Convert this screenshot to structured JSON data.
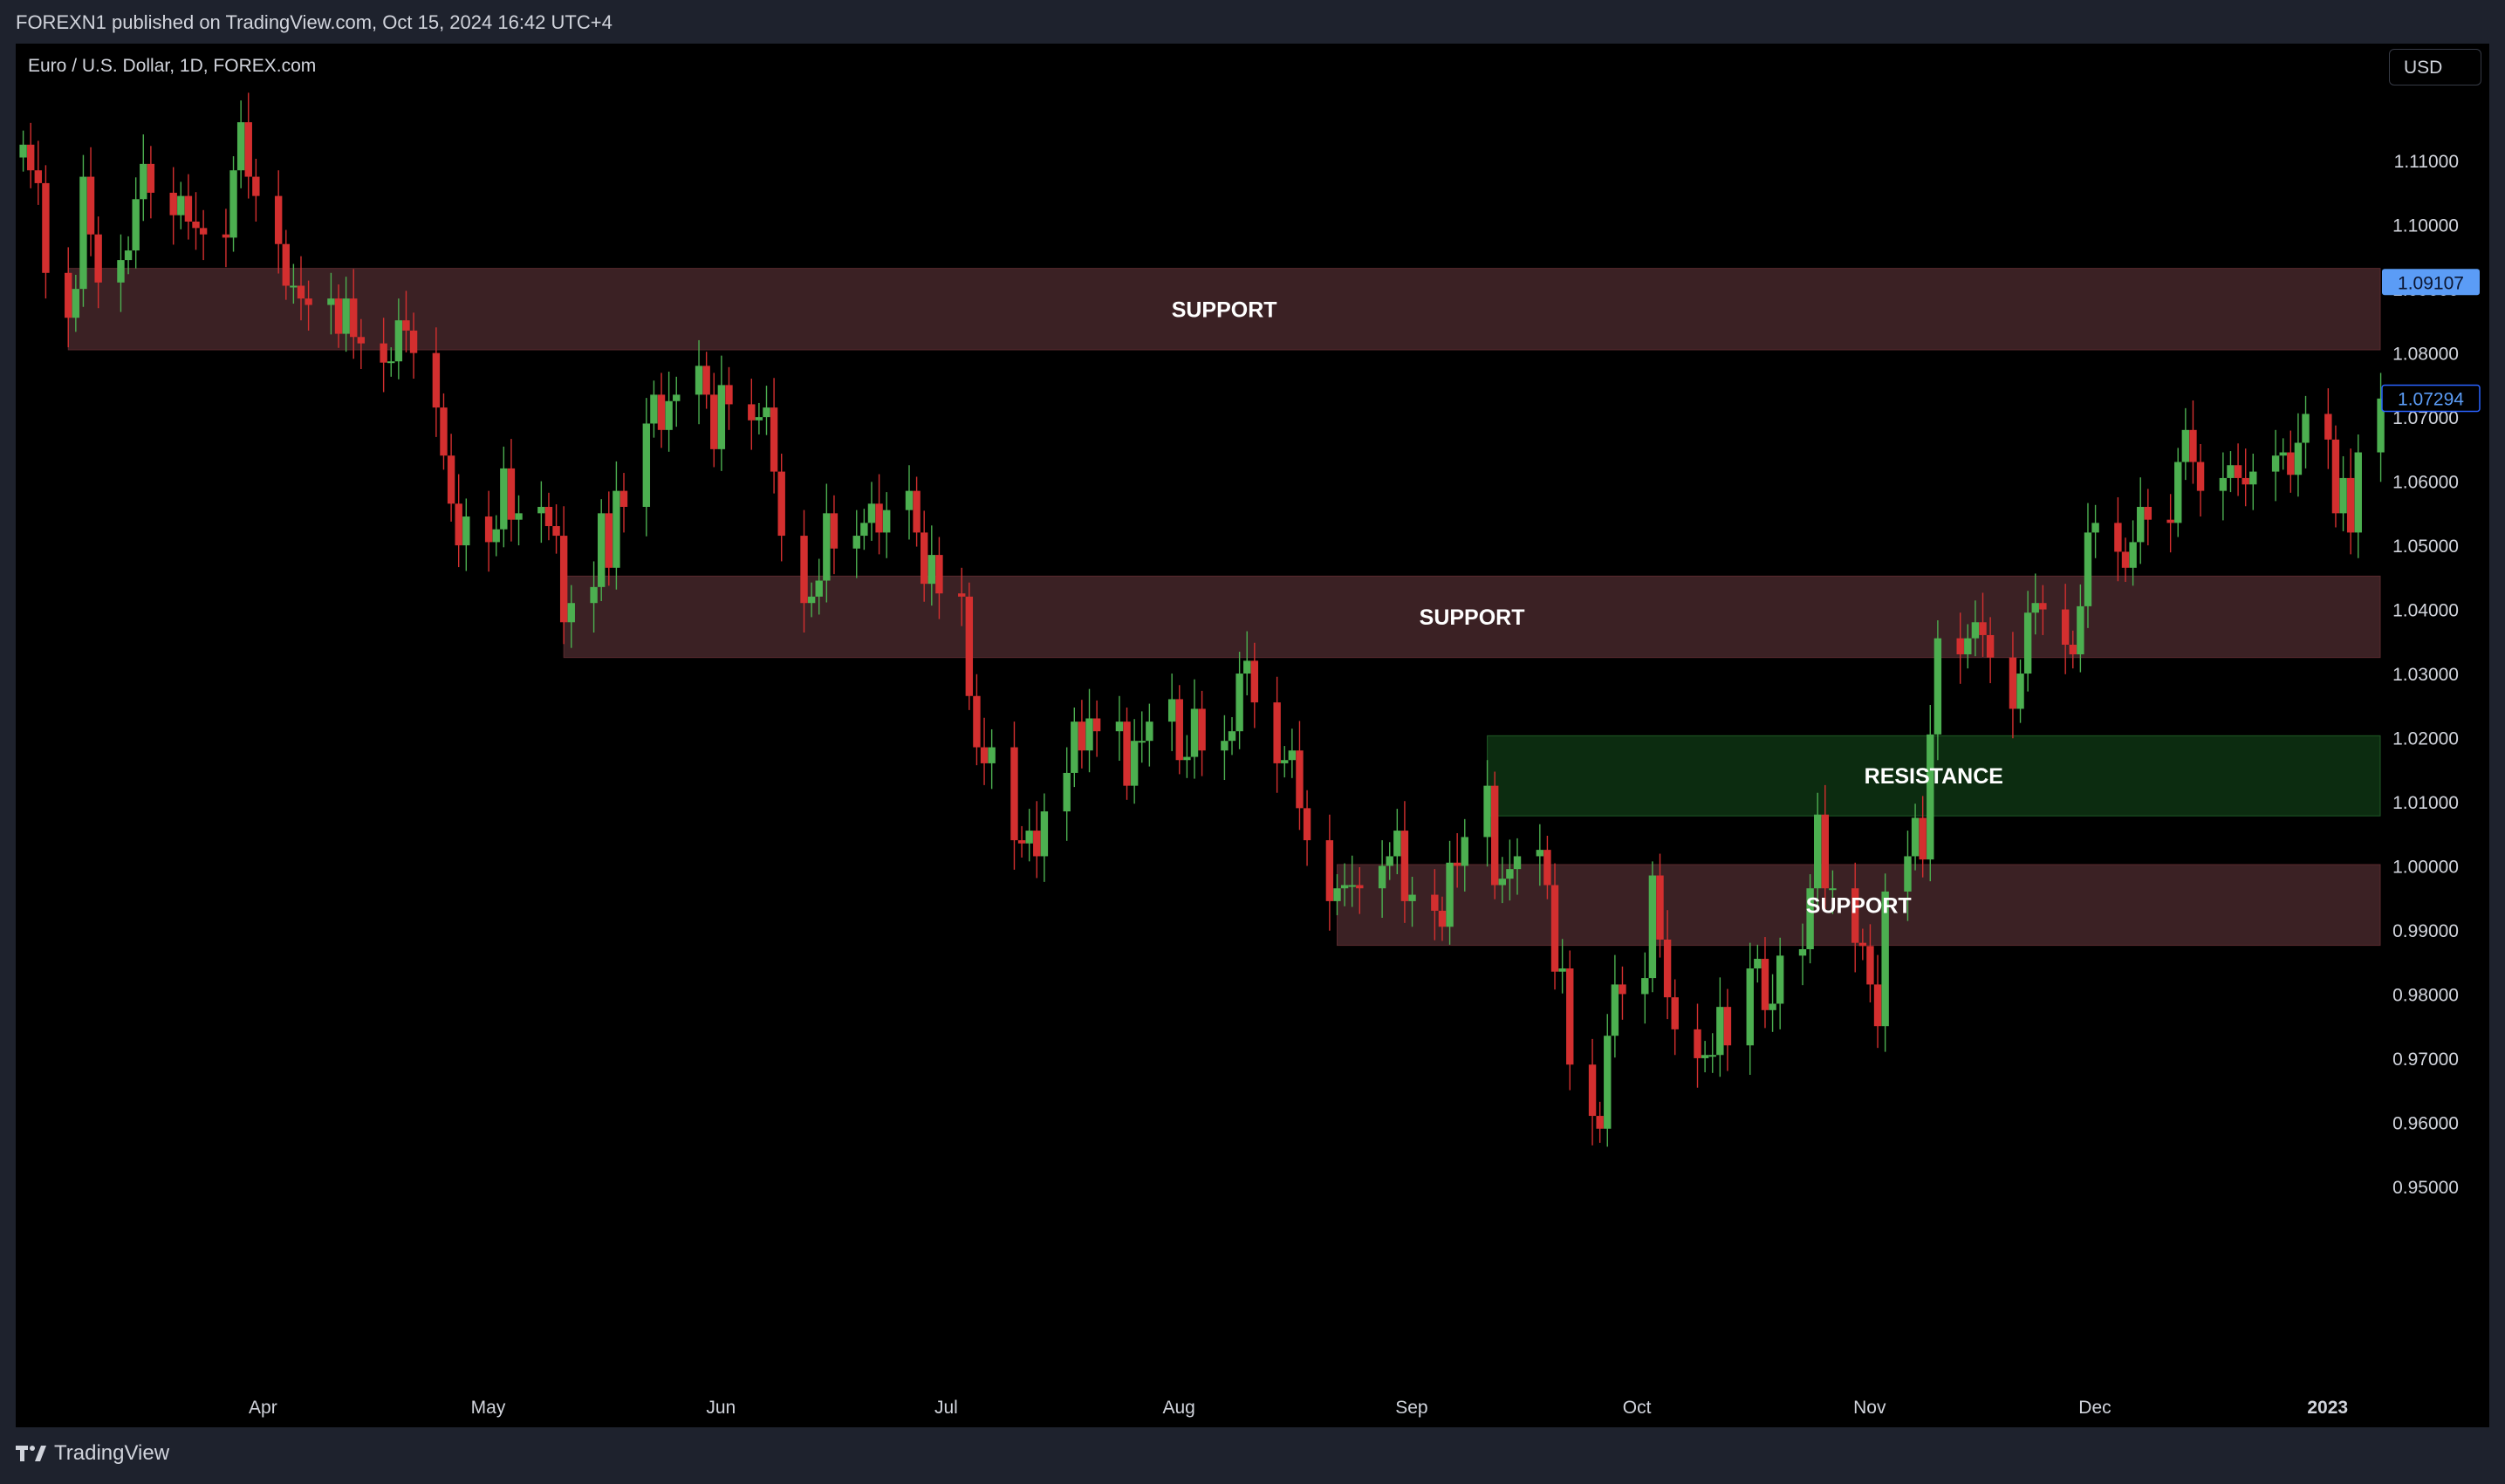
{
  "header": {
    "published": "FOREXN1 published on TradingView.com, Oct 15, 2024 16:42 UTC+4"
  },
  "symbol_title": "Euro / U.S. Dollar, 1D, FOREX.com",
  "currency_label": "USD",
  "footer": {
    "brand": "TradingView",
    "brand_icon": "tradingview-logo-icon"
  },
  "colors": {
    "background": "#000000",
    "frame": "#1e222d",
    "up": "#4caf50",
    "down": "#d32f2f",
    "support_zone": "#3b2124",
    "resistance_zone": "#0c2c10",
    "last_price_tag": "#2962ff",
    "ref_price_tag": "#5b9cf6"
  },
  "chart_data": {
    "type": "candlestick",
    "title": "Euro / U.S. Dollar, 1D, FOREX.com",
    "ylim": [
      0.9425,
      1.1235
    ],
    "y_ticks": [
      "1.11000",
      "1.10000",
      "1.09000",
      "1.08000",
      "1.07000",
      "1.06000",
      "1.05000",
      "1.04000",
      "1.03000",
      "1.02000",
      "1.01000",
      "1.00000",
      "0.99000",
      "0.98000",
      "0.97000",
      "0.96000",
      "0.95000"
    ],
    "x_ticks": [
      {
        "label": "Apr",
        "date": "2022-04-01"
      },
      {
        "label": "May",
        "date": "2022-05-01"
      },
      {
        "label": "Jun",
        "date": "2022-06-01"
      },
      {
        "label": "Jul",
        "date": "2022-07-01"
      },
      {
        "label": "Aug",
        "date": "2022-08-01"
      },
      {
        "label": "Sep",
        "date": "2022-09-01"
      },
      {
        "label": "Oct",
        "date": "2022-10-01"
      },
      {
        "label": "Nov",
        "date": "2022-11-01"
      },
      {
        "label": "Dec",
        "date": "2022-12-01"
      },
      {
        "label": "2023",
        "date": "2023-01-01",
        "bold": true
      }
    ],
    "grid": false,
    "price_tags": [
      {
        "value": 1.09107,
        "label": "1.09107",
        "style": "filled"
      },
      {
        "value": 1.07294,
        "label": "1.07294",
        "style": "outlined"
      }
    ],
    "zones": [
      {
        "label": "SUPPORT",
        "kind": "support",
        "from": "2022-03-07",
        "low": 1.0805,
        "high": 1.0932
      },
      {
        "label": "SUPPORT",
        "kind": "support",
        "from": "2022-05-12",
        "low": 1.0325,
        "high": 1.0452
      },
      {
        "label": "RESISTANCE",
        "kind": "resistance",
        "from": "2022-09-12",
        "low": 1.0078,
        "high": 1.0203
      },
      {
        "label": "SUPPORT",
        "kind": "support",
        "from": "2022-08-23",
        "low": 0.9876,
        "high": 1.0002
      }
    ],
    "series": [
      {
        "name": "EURUSD",
        "closes": [
          [
            "2022-03-01",
            1.1125
          ],
          [
            "2022-03-02",
            1.1085
          ],
          [
            "2022-03-03",
            1.1065
          ],
          [
            "2022-03-04",
            1.0925
          ],
          [
            "2022-03-07",
            1.0855
          ],
          [
            "2022-03-08",
            1.09
          ],
          [
            "2022-03-09",
            1.1075
          ],
          [
            "2022-03-10",
            1.0985
          ],
          [
            "2022-03-11",
            1.091
          ],
          [
            "2022-03-14",
            1.0945
          ],
          [
            "2022-03-15",
            1.096
          ],
          [
            "2022-03-16",
            1.104
          ],
          [
            "2022-03-17",
            1.1095
          ],
          [
            "2022-03-18",
            1.105
          ],
          [
            "2022-03-21",
            1.1015
          ],
          [
            "2022-03-22",
            1.1045
          ],
          [
            "2022-03-23",
            1.1005
          ],
          [
            "2022-03-24",
            1.0995
          ],
          [
            "2022-03-25",
            1.0985
          ],
          [
            "2022-03-28",
            1.098
          ],
          [
            "2022-03-29",
            1.1085
          ],
          [
            "2022-03-30",
            1.116
          ],
          [
            "2022-03-31",
            1.1075
          ],
          [
            "2022-04-01",
            1.1045
          ],
          [
            "2022-04-04",
            1.097
          ],
          [
            "2022-04-05",
            1.0905
          ],
          [
            "2022-04-06",
            1.0905
          ],
          [
            "2022-04-07",
            1.0885
          ],
          [
            "2022-04-08",
            1.0875
          ],
          [
            "2022-04-11",
            1.0885
          ],
          [
            "2022-04-12",
            1.083
          ],
          [
            "2022-04-13",
            1.0885
          ],
          [
            "2022-04-14",
            1.0825
          ],
          [
            "2022-04-15",
            1.0815
          ],
          [
            "2022-04-18",
            1.0785
          ],
          [
            "2022-04-19",
            1.0787
          ],
          [
            "2022-04-20",
            1.0851
          ],
          [
            "2022-04-21",
            1.0835
          ],
          [
            "2022-04-22",
            1.08
          ],
          [
            "2022-04-25",
            1.0715
          ],
          [
            "2022-04-26",
            1.064
          ],
          [
            "2022-04-27",
            1.0565
          ],
          [
            "2022-04-28",
            1.05
          ],
          [
            "2022-04-29",
            1.0545
          ],
          [
            "2022-05-02",
            1.0505
          ],
          [
            "2022-05-03",
            1.0525
          ],
          [
            "2022-05-04",
            1.062
          ],
          [
            "2022-05-05",
            1.054
          ],
          [
            "2022-05-06",
            1.055
          ],
          [
            "2022-05-09",
            1.056
          ],
          [
            "2022-05-10",
            1.053
          ],
          [
            "2022-05-11",
            1.0515
          ],
          [
            "2022-05-12",
            1.038
          ],
          [
            "2022-05-13",
            1.041
          ],
          [
            "2022-05-16",
            1.0435
          ],
          [
            "2022-05-17",
            1.055
          ],
          [
            "2022-05-18",
            1.0465
          ],
          [
            "2022-05-19",
            1.0585
          ],
          [
            "2022-05-20",
            1.056
          ],
          [
            "2022-05-23",
            1.069
          ],
          [
            "2022-05-24",
            1.0735
          ],
          [
            "2022-05-25",
            1.068
          ],
          [
            "2022-05-26",
            1.0725
          ],
          [
            "2022-05-27",
            1.0735
          ],
          [
            "2022-05-30",
            1.078
          ],
          [
            "2022-05-31",
            1.0735
          ],
          [
            "2022-06-01",
            1.065
          ],
          [
            "2022-06-02",
            1.075
          ],
          [
            "2022-06-03",
            1.072
          ],
          [
            "2022-06-06",
            1.0695
          ],
          [
            "2022-06-07",
            1.07
          ],
          [
            "2022-06-08",
            1.0715
          ],
          [
            "2022-06-09",
            1.0615
          ],
          [
            "2022-06-10",
            1.0515
          ],
          [
            "2022-06-13",
            1.041
          ],
          [
            "2022-06-14",
            1.042
          ],
          [
            "2022-06-15",
            1.0445
          ],
          [
            "2022-06-16",
            1.055
          ],
          [
            "2022-06-17",
            1.0495
          ],
          [
            "2022-06-20",
            1.0515
          ],
          [
            "2022-06-21",
            1.0535
          ],
          [
            "2022-06-22",
            1.0565
          ],
          [
            "2022-06-23",
            1.052
          ],
          [
            "2022-06-24",
            1.0555
          ],
          [
            "2022-06-27",
            1.0585
          ],
          [
            "2022-06-28",
            1.052
          ],
          [
            "2022-06-29",
            1.044
          ],
          [
            "2022-06-30",
            1.0485
          ],
          [
            "2022-07-01",
            1.0425
          ],
          [
            "2022-07-04",
            1.042
          ],
          [
            "2022-07-05",
            1.0265
          ],
          [
            "2022-07-06",
            1.0185
          ],
          [
            "2022-07-07",
            1.016
          ],
          [
            "2022-07-08",
            1.0185
          ],
          [
            "2022-07-11",
            1.004
          ],
          [
            "2022-07-12",
            1.0035
          ],
          [
            "2022-07-13",
            1.0055
          ],
          [
            "2022-07-14",
            1.0015
          ],
          [
            "2022-07-15",
            1.0085
          ],
          [
            "2022-07-18",
            1.0145
          ],
          [
            "2022-07-19",
            1.0225
          ],
          [
            "2022-07-20",
            1.018
          ],
          [
            "2022-07-21",
            1.023
          ],
          [
            "2022-07-22",
            1.021
          ],
          [
            "2022-07-25",
            1.0225
          ],
          [
            "2022-07-26",
            1.0125
          ],
          [
            "2022-07-27",
            1.0195
          ],
          [
            "2022-07-28",
            1.0195
          ],
          [
            "2022-07-29",
            1.0225
          ],
          [
            "2022-08-01",
            1.026
          ],
          [
            "2022-08-02",
            1.0165
          ],
          [
            "2022-08-03",
            1.017
          ],
          [
            "2022-08-04",
            1.0245
          ],
          [
            "2022-08-05",
            1.018
          ],
          [
            "2022-08-08",
            1.0195
          ],
          [
            "2022-08-09",
            1.021
          ],
          [
            "2022-08-10",
            1.03
          ],
          [
            "2022-08-11",
            1.032
          ],
          [
            "2022-08-12",
            1.0255
          ],
          [
            "2022-08-15",
            1.016
          ],
          [
            "2022-08-16",
            1.0165
          ],
          [
            "2022-08-17",
            1.018
          ],
          [
            "2022-08-18",
            1.009
          ],
          [
            "2022-08-19",
            1.004
          ],
          [
            "2022-08-22",
            0.9945
          ],
          [
            "2022-08-23",
            0.9965
          ],
          [
            "2022-08-24",
            0.997
          ],
          [
            "2022-08-25",
            0.997
          ],
          [
            "2022-08-26",
            0.9965
          ],
          [
            "2022-08-29",
            1.0
          ],
          [
            "2022-08-30",
            1.0015
          ],
          [
            "2022-08-31",
            1.0055
          ],
          [
            "2022-09-01",
            0.9945
          ],
          [
            "2022-09-02",
            0.9955
          ],
          [
            "2022-09-05",
            0.993
          ],
          [
            "2022-09-06",
            0.9905
          ],
          [
            "2022-09-07",
            1.0005
          ],
          [
            "2022-09-08",
            1.0
          ],
          [
            "2022-09-09",
            1.0045
          ],
          [
            "2022-09-12",
            1.0125
          ],
          [
            "2022-09-13",
            0.997
          ],
          [
            "2022-09-14",
            0.998
          ],
          [
            "2022-09-15",
            0.9995
          ],
          [
            "2022-09-16",
            1.0015
          ],
          [
            "2022-09-19",
            1.0025
          ],
          [
            "2022-09-20",
            0.997
          ],
          [
            "2022-09-21",
            0.9835
          ],
          [
            "2022-09-22",
            0.984
          ],
          [
            "2022-09-23",
            0.969
          ],
          [
            "2022-09-26",
            0.961
          ],
          [
            "2022-09-27",
            0.959
          ],
          [
            "2022-09-28",
            0.9735
          ],
          [
            "2022-09-29",
            0.9815
          ],
          [
            "2022-09-30",
            0.98
          ],
          [
            "2022-10-03",
            0.9825
          ],
          [
            "2022-10-04",
            0.9985
          ],
          [
            "2022-10-05",
            0.9885
          ],
          [
            "2022-10-06",
            0.9795
          ],
          [
            "2022-10-07",
            0.9745
          ],
          [
            "2022-10-10",
            0.97
          ],
          [
            "2022-10-11",
            0.9705
          ],
          [
            "2022-10-12",
            0.9705
          ],
          [
            "2022-10-13",
            0.978
          ],
          [
            "2022-10-14",
            0.972
          ],
          [
            "2022-10-17",
            0.984
          ],
          [
            "2022-10-18",
            0.9855
          ],
          [
            "2022-10-19",
            0.9775
          ],
          [
            "2022-10-20",
            0.9785
          ],
          [
            "2022-10-21",
            0.986
          ],
          [
            "2022-10-24",
            0.987
          ],
          [
            "2022-10-25",
            0.9965
          ],
          [
            "2022-10-26",
            1.008
          ],
          [
            "2022-10-27",
            0.9965
          ],
          [
            "2022-10-28",
            0.9965
          ],
          [
            "2022-10-31",
            0.988
          ],
          [
            "2022-11-01",
            0.9875
          ],
          [
            "2022-11-02",
            0.9815
          ],
          [
            "2022-11-03",
            0.975
          ],
          [
            "2022-11-04",
            0.996
          ],
          [
            "2022-11-07",
            1.0015
          ],
          [
            "2022-11-08",
            1.0075
          ],
          [
            "2022-11-09",
            1.001
          ],
          [
            "2022-11-10",
            1.0205
          ],
          [
            "2022-11-11",
            1.0355
          ],
          [
            "2022-11-14",
            1.033
          ],
          [
            "2022-11-15",
            1.0355
          ],
          [
            "2022-11-16",
            1.038
          ],
          [
            "2022-11-17",
            1.036
          ],
          [
            "2022-11-18",
            1.0325
          ],
          [
            "2022-11-21",
            1.0245
          ],
          [
            "2022-11-22",
            1.03
          ],
          [
            "2022-11-23",
            1.0395
          ],
          [
            "2022-11-24",
            1.041
          ],
          [
            "2022-11-25",
            1.04
          ],
          [
            "2022-11-28",
            1.0345
          ],
          [
            "2022-11-29",
            1.033
          ],
          [
            "2022-11-30",
            1.0405
          ],
          [
            "2022-12-01",
            1.052
          ],
          [
            "2022-12-02",
            1.0535
          ],
          [
            "2022-12-05",
            1.049
          ],
          [
            "2022-12-06",
            1.0465
          ],
          [
            "2022-12-07",
            1.0505
          ],
          [
            "2022-12-08",
            1.056
          ],
          [
            "2022-12-09",
            1.054
          ],
          [
            "2022-12-12",
            1.0535
          ],
          [
            "2022-12-13",
            1.063
          ],
          [
            "2022-12-14",
            1.068
          ],
          [
            "2022-12-15",
            1.063
          ],
          [
            "2022-12-16",
            1.0585
          ],
          [
            "2022-12-19",
            1.0605
          ],
          [
            "2022-12-20",
            1.0625
          ],
          [
            "2022-12-21",
            1.0605
          ],
          [
            "2022-12-22",
            1.0595
          ],
          [
            "2022-12-23",
            1.0615
          ],
          [
            "2022-12-26",
            1.064
          ],
          [
            "2022-12-27",
            1.0645
          ],
          [
            "2022-12-28",
            1.061
          ],
          [
            "2022-12-29",
            1.066
          ],
          [
            "2022-12-30",
            1.0705
          ],
          [
            "2023-01-02",
            1.0665
          ],
          [
            "2023-01-03",
            1.055
          ],
          [
            "2023-01-04",
            1.0605
          ],
          [
            "2023-01-05",
            1.052
          ],
          [
            "2023-01-06",
            1.0645
          ],
          [
            "2023-01-09",
            1.0729
          ]
        ]
      }
    ]
  }
}
